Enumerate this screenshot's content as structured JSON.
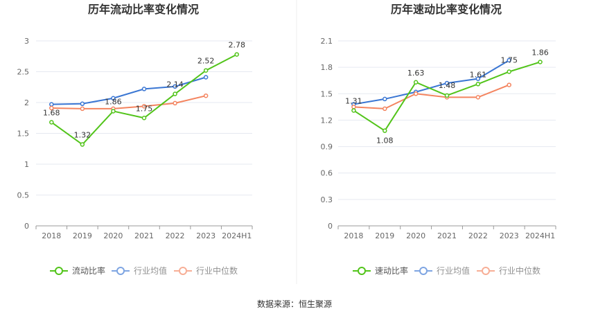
{
  "source_note": "数据来源：恒生聚源",
  "colors": {
    "company": "#52c41a",
    "industry_avg": "#3a76d3",
    "industry_median": "#f4845f",
    "grid": "#e6e9f0",
    "axis": "#999999",
    "divider": "#eeeeee"
  },
  "chart_data": [
    {
      "type": "line",
      "title": "历年流动比率变化情况",
      "categories": [
        "2018",
        "2019",
        "2020",
        "2021",
        "2022",
        "2023",
        "2024H1"
      ],
      "ylim": [
        0,
        3
      ],
      "yticks": [
        0,
        0.5,
        1,
        1.5,
        2,
        2.5,
        3
      ],
      "ytick_labels": [
        "0",
        "0.5",
        "1",
        "1.5",
        "2",
        "2.5",
        "3"
      ],
      "xlabel": "",
      "ylabel": "",
      "grid": true,
      "legend": "bottom-center",
      "series": [
        {
          "name": "流动比率",
          "key": "company",
          "values": [
            1.68,
            1.32,
            1.86,
            1.75,
            2.14,
            2.52,
            2.78
          ],
          "labels": [
            "1.68",
            "1.32",
            "1.86",
            "1.75",
            "2.14",
            "2.52",
            "2.78"
          ]
        },
        {
          "name": "行业均值",
          "key": "industry_avg",
          "values": [
            1.97,
            1.98,
            2.07,
            2.22,
            2.26,
            2.41,
            null
          ]
        },
        {
          "name": "行业中位数",
          "key": "industry_median",
          "values": [
            1.91,
            1.9,
            1.9,
            1.94,
            1.99,
            2.11,
            null
          ]
        }
      ]
    },
    {
      "type": "line",
      "title": "历年速动比率变化情况",
      "categories": [
        "2018",
        "2019",
        "2020",
        "2021",
        "2022",
        "2023",
        "2024H1"
      ],
      "ylim": [
        0,
        2.1
      ],
      "yticks": [
        0,
        0.3,
        0.6,
        0.9,
        1.2,
        1.5,
        1.8,
        2.1
      ],
      "ytick_labels": [
        "0",
        "0.3",
        "0.6",
        "0.9",
        "1.2",
        "1.5",
        "1.8",
        "2.1"
      ],
      "xlabel": "",
      "ylabel": "",
      "grid": true,
      "legend": "bottom-center",
      "series": [
        {
          "name": "速动比率",
          "key": "company",
          "values": [
            1.31,
            1.08,
            1.63,
            1.48,
            1.61,
            1.75,
            1.86
          ],
          "labels": [
            "1.31",
            "1.08",
            "1.63",
            "1.48",
            "1.61",
            "1.75",
            "1.86"
          ]
        },
        {
          "name": "行业均值",
          "key": "industry_avg",
          "values": [
            1.38,
            1.44,
            1.52,
            1.62,
            1.67,
            1.88,
            null
          ]
        },
        {
          "name": "行业中位数",
          "key": "industry_median",
          "values": [
            1.35,
            1.33,
            1.5,
            1.46,
            1.46,
            1.6,
            null
          ]
        }
      ]
    }
  ]
}
